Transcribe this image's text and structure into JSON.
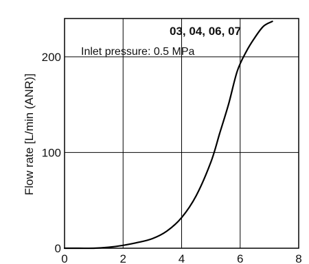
{
  "chart_data": {
    "type": "line",
    "title": "",
    "xlabel": "",
    "ylabel": "Flow rate [L/min (ANR)]",
    "xlim": [
      0,
      8
    ],
    "ylim": [
      0,
      240
    ],
    "x_ticks": [
      0,
      2,
      4,
      6,
      8
    ],
    "y_ticks": [
      0,
      100,
      200
    ],
    "grid": true,
    "annotations": [
      "Inlet pressure: 0.5 MPa"
    ],
    "series": [
      {
        "name": "03, 04, 06, 07",
        "x": [
          0,
          0.5,
          1.0,
          1.5,
          2.0,
          2.5,
          3.0,
          3.5,
          4.0,
          4.5,
          5.0,
          5.3,
          5.6,
          5.9,
          6.2,
          6.5,
          6.8,
          7.1
        ],
        "y": [
          0,
          0,
          0,
          1,
          3,
          6,
          10,
          18,
          32,
          55,
          90,
          120,
          150,
          185,
          205,
          220,
          232,
          237
        ]
      }
    ],
    "colors": {
      "line": "#000000",
      "grid": "#000000",
      "frame": "#000000"
    }
  }
}
